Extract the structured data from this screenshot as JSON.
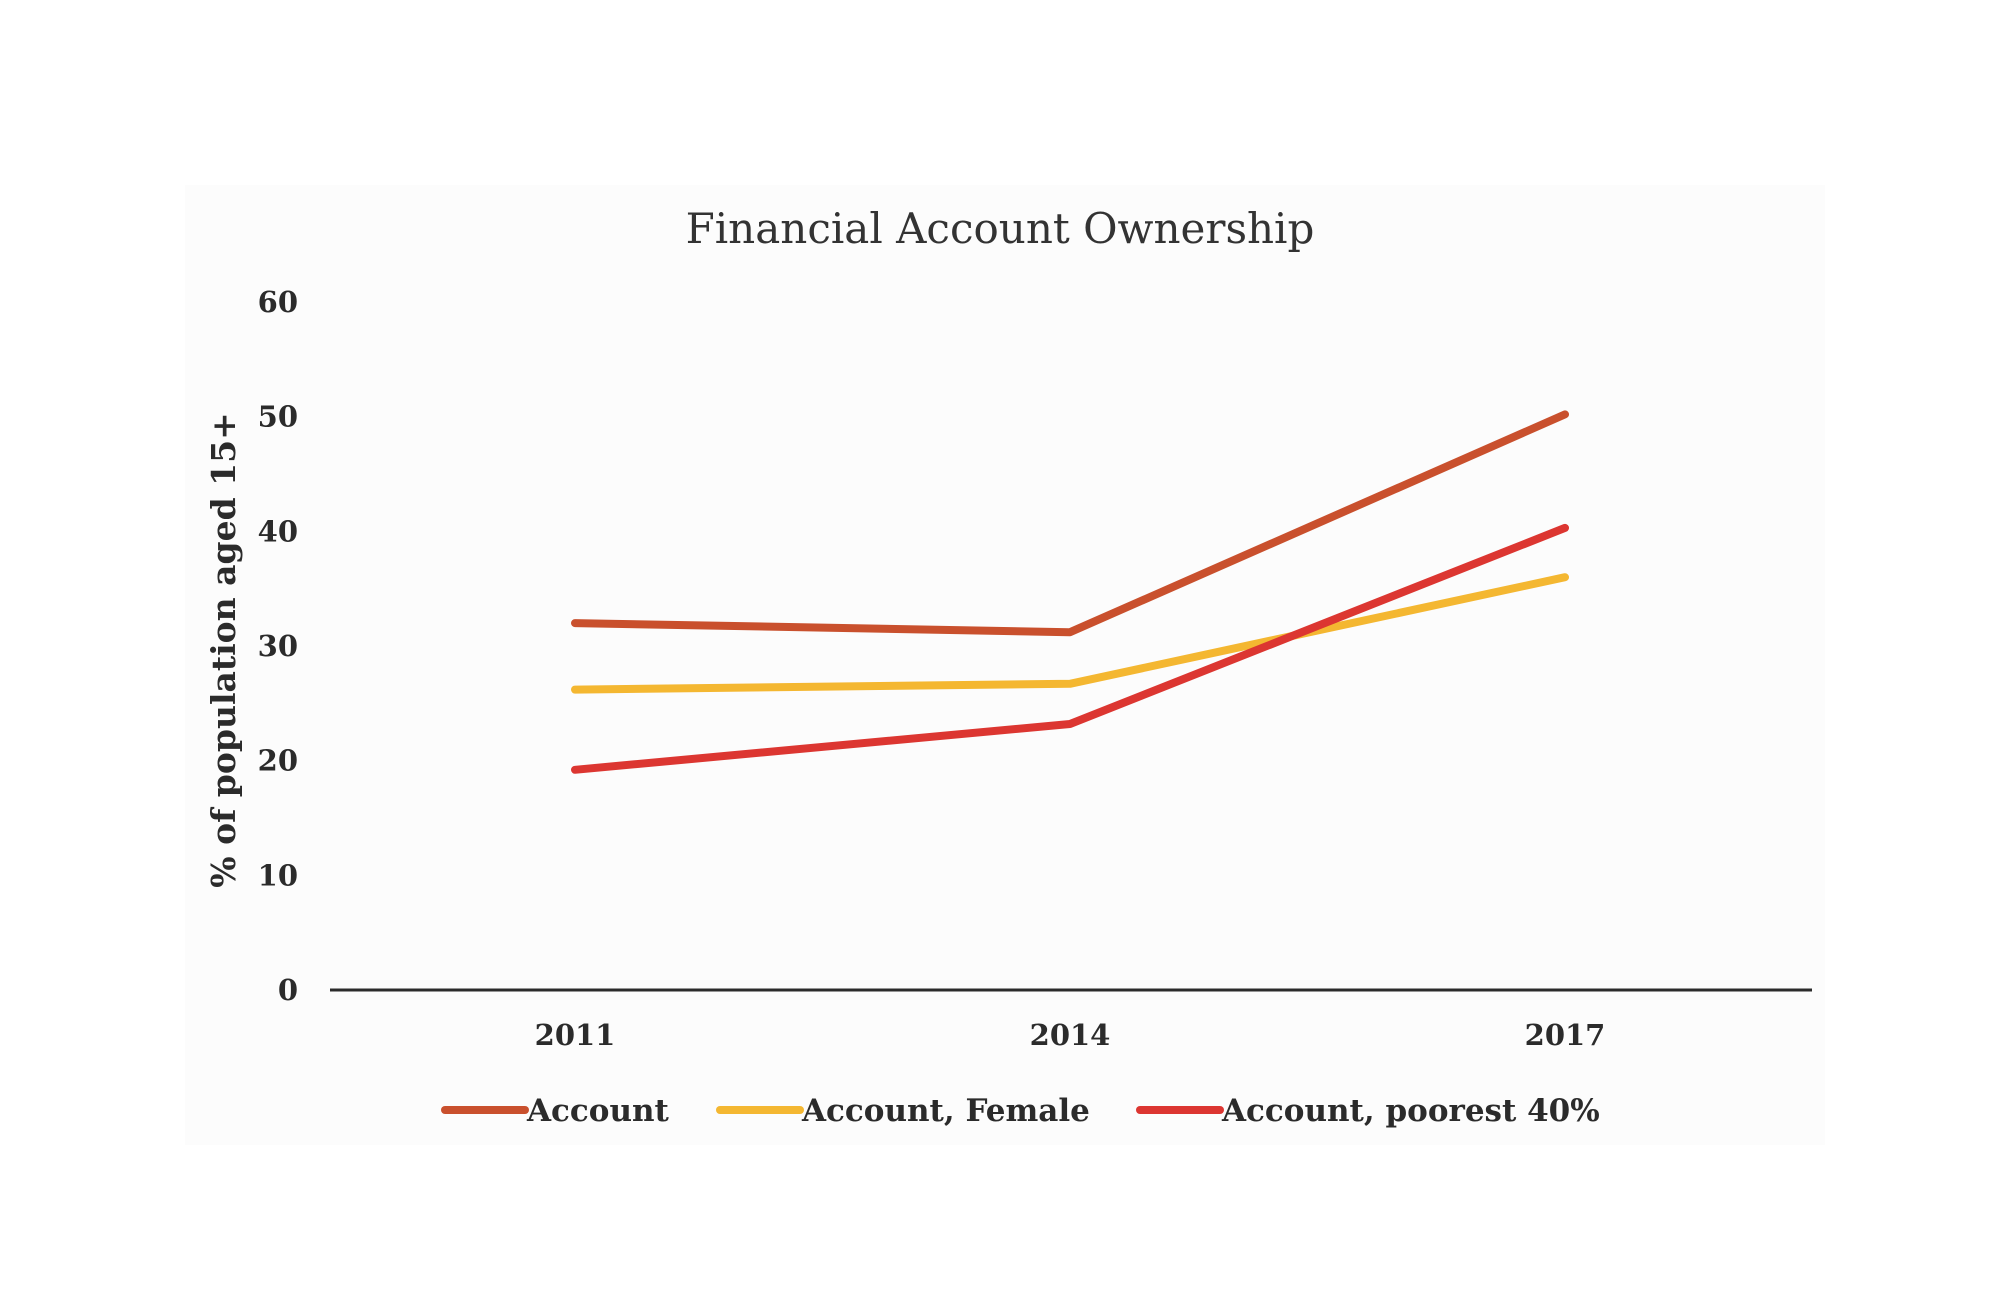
{
  "chart_data": {
    "type": "line",
    "title": "Financial Account Ownership",
    "xlabel": "",
    "ylabel": "% of population aged 15+",
    "categories": [
      "2011",
      "2014",
      "2017"
    ],
    "ylim": [
      0,
      60
    ],
    "yticks": [
      0,
      10,
      20,
      30,
      40,
      50,
      60
    ],
    "grid": false,
    "legend_position": "bottom",
    "series": [
      {
        "name": "Account",
        "color": "#c9502d",
        "values": [
          32,
          31.2,
          50.2
        ]
      },
      {
        "name": "Account, Female",
        "color": "#f4b731",
        "values": [
          26.2,
          26.7,
          36
        ]
      },
      {
        "name": "Account, poorest 40%",
        "color": "#dc3631",
        "values": [
          19.2,
          23.2,
          40.3
        ]
      }
    ]
  }
}
